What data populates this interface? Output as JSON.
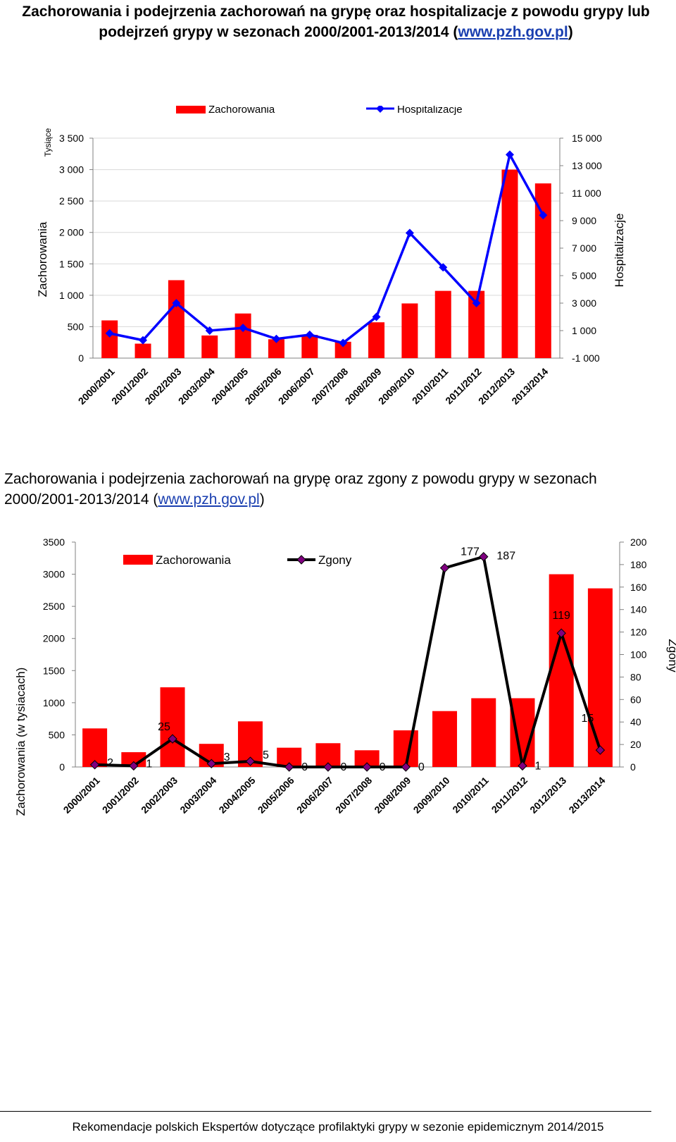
{
  "chart1": {
    "title_prefix": "Zachorowania i podejrzenia zachorowań na grypę oraz hospitalizacje z powodu grypy lub podejrzeń grypy w sezonach 2000/2001-2013/2014 (",
    "title_link": "www.pzh.gov.pl",
    "title_suffix": ")"
  },
  "chart2": {
    "title_prefix": "Zachorowania i podejrzenia zachorowań na grypę oraz zgony z powodu grypy w sezonach 2000/2001-2013/2014 (",
    "title_link": "www.pzh.gov.pl",
    "title_suffix": ")"
  },
  "footer": "Rekomendacje polskich Ekspertów dotyczące profilaktyki grypy w sezonie epidemicznym 2014/2015",
  "chart_data": [
    {
      "type": "bar",
      "categories": [
        "2000/2001",
        "2001/2002",
        "2002/2003",
        "2003/2004",
        "2004/2005",
        "2005/2006",
        "2006/2007",
        "2007/2008",
        "2008/2009",
        "2009/2010",
        "2010/2011",
        "2011/2012",
        "2012/2013",
        "2013/2014"
      ],
      "series": [
        {
          "name": "Zachorowania",
          "type": "bar",
          "axis": "left",
          "color": "#ff0000",
          "values": [
            600,
            230,
            1240,
            360,
            710,
            300,
            370,
            260,
            570,
            870,
            1070,
            1070,
            3000,
            2780
          ]
        },
        {
          "name": "Hospitalizacje",
          "type": "line",
          "axis": "right",
          "color": "#0000ff",
          "values": [
            800,
            300,
            3000,
            1000,
            1200,
            400,
            700,
            100,
            2000,
            8100,
            5600,
            3000,
            13800,
            9400
          ]
        }
      ],
      "ylabel": "Zachorowania",
      "ylabel_unit": "Tysiące",
      "y2label": "Hospitalizacje",
      "ylim": [
        0,
        3500
      ],
      "y2lim": [
        -1000,
        15000
      ],
      "yticks": [
        "0",
        "500",
        "1 000",
        "1 500",
        "2 000",
        "2 500",
        "3 000",
        "3 500"
      ],
      "y2ticks": [
        "-1 000",
        "1 000",
        "3 000",
        "5 000",
        "7 000",
        "9 000",
        "11 000",
        "13 000",
        "15 000"
      ],
      "grid": true,
      "legend": "top"
    },
    {
      "type": "bar",
      "categories": [
        "2000/2001",
        "2001/2002",
        "2002/2003",
        "2003/2004",
        "2004/2005",
        "2005/2006",
        "2006/2007",
        "2007/2008",
        "2008/2009",
        "2009/2010",
        "2010/2011",
        "2011/2012",
        "2012/2013",
        "2013/2014"
      ],
      "series": [
        {
          "name": "Zachorowania",
          "type": "bar",
          "axis": "left",
          "color": "#ff0000",
          "values": [
            600,
            230,
            1240,
            360,
            710,
            300,
            370,
            260,
            570,
            870,
            1070,
            1070,
            3000,
            2780
          ]
        },
        {
          "name": "Zgony",
          "type": "line",
          "axis": "right",
          "color": "#000000",
          "marker_color": "#800080",
          "values": [
            2,
            1,
            25,
            3,
            5,
            0,
            0,
            0,
            0,
            177,
            187,
            1,
            119,
            15
          ]
        }
      ],
      "point_labels": [
        "2",
        "1",
        "25",
        "3",
        "5",
        "0",
        "0",
        "0",
        "0",
        "177",
        "187",
        "1",
        "119",
        "15"
      ],
      "ylabel": "Zachorowania (w  tysiacach)",
      "y2label": "Zgony",
      "ylim": [
        0,
        3500
      ],
      "y2lim": [
        0,
        200
      ],
      "yticks": [
        "0",
        "500",
        "1000",
        "1500",
        "2000",
        "2500",
        "3000",
        "3500"
      ],
      "y2ticks": [
        "0",
        "20",
        "40",
        "60",
        "80",
        "100",
        "120",
        "140",
        "160",
        "180",
        "200"
      ],
      "grid": false,
      "legend": "top"
    }
  ]
}
